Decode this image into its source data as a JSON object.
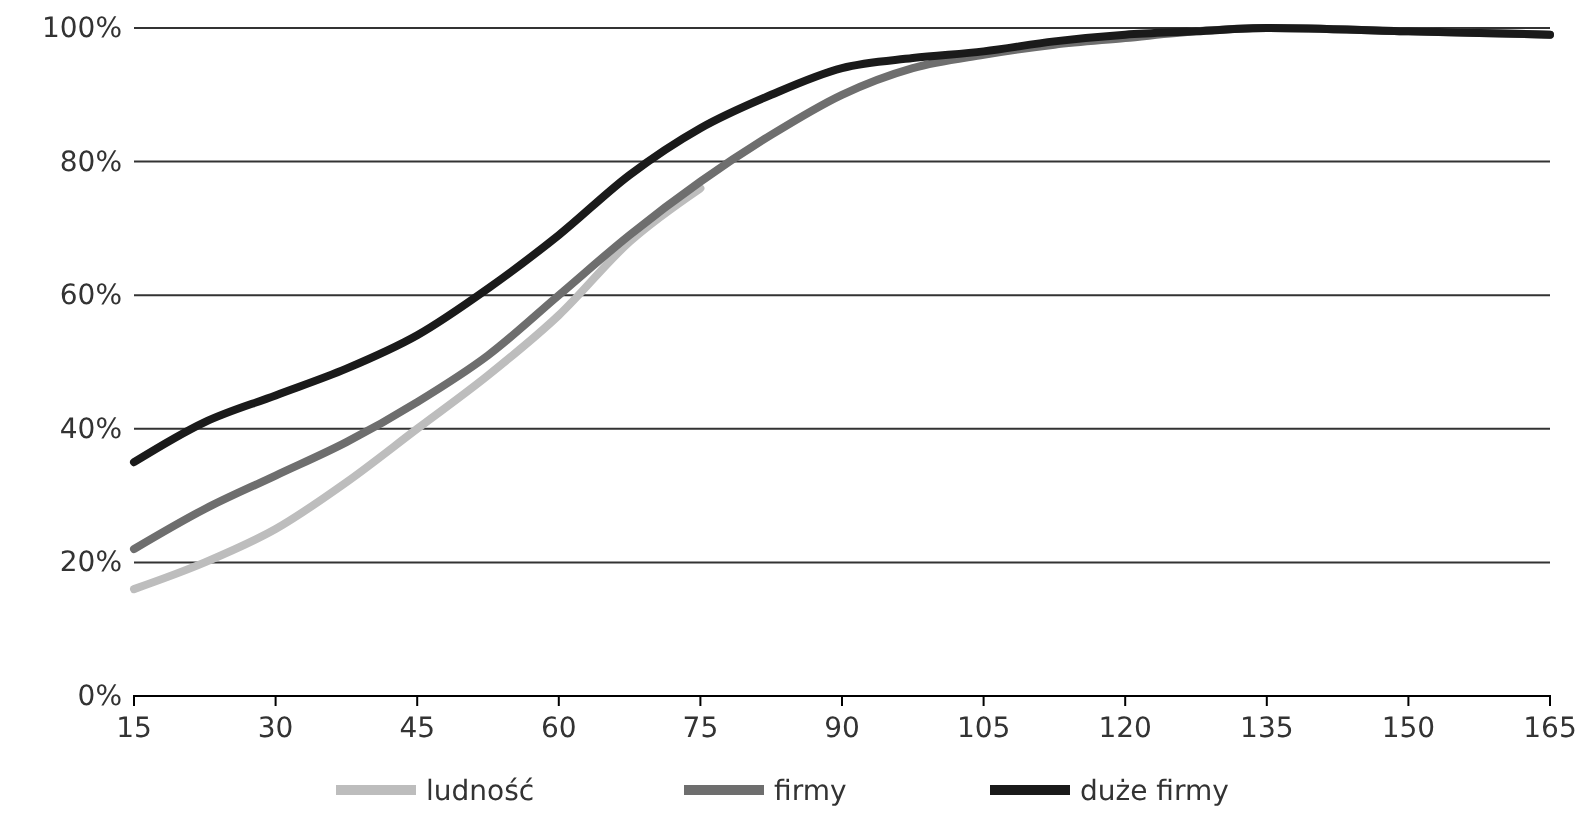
{
  "chart_data": {
    "type": "line",
    "x": [
      15,
      22.5,
      30,
      37.5,
      45,
      52.5,
      60,
      67.5,
      75,
      82.5,
      90,
      97.5,
      105,
      112.5,
      120,
      127.5,
      135,
      150,
      165
    ],
    "series": [
      {
        "name": "ludność",
        "color": "#bdbdbd",
        "values": [
          16,
          20,
          25,
          32,
          40,
          48,
          57,
          68,
          76,
          null,
          null,
          null,
          null,
          null,
          null,
          null,
          null,
          null,
          null
        ]
      },
      {
        "name": "firmy",
        "color": "#6e6e6e",
        "values": [
          22,
          28,
          33,
          38,
          44,
          51,
          60,
          69,
          77,
          84,
          90,
          94,
          96,
          97.5,
          98.5,
          99.5,
          100,
          99.5,
          99
        ]
      },
      {
        "name": "duże firmy",
        "color": "#1a1a1a",
        "values": [
          35,
          41,
          45,
          49,
          54,
          61,
          69,
          78,
          85,
          90,
          94,
          95.5,
          96.5,
          98,
          99,
          99.5,
          100,
          99.5,
          99
        ]
      }
    ],
    "xlim": [
      15,
      165
    ],
    "xticks": [
      15,
      30,
      45,
      60,
      75,
      90,
      105,
      120,
      135,
      150,
      165
    ],
    "ylim": [
      0,
      100
    ],
    "yticks": [
      {
        "value": 0,
        "label": "0%"
      },
      {
        "value": 20,
        "label": "20%"
      },
      {
        "value": 40,
        "label": "40%"
      },
      {
        "value": 60,
        "label": "60%"
      },
      {
        "value": 80,
        "label": "80%"
      },
      {
        "value": 100,
        "label": "100%"
      }
    ],
    "grid": "y",
    "legend": "bottom",
    "marker": "none",
    "line_style": "solid"
  }
}
